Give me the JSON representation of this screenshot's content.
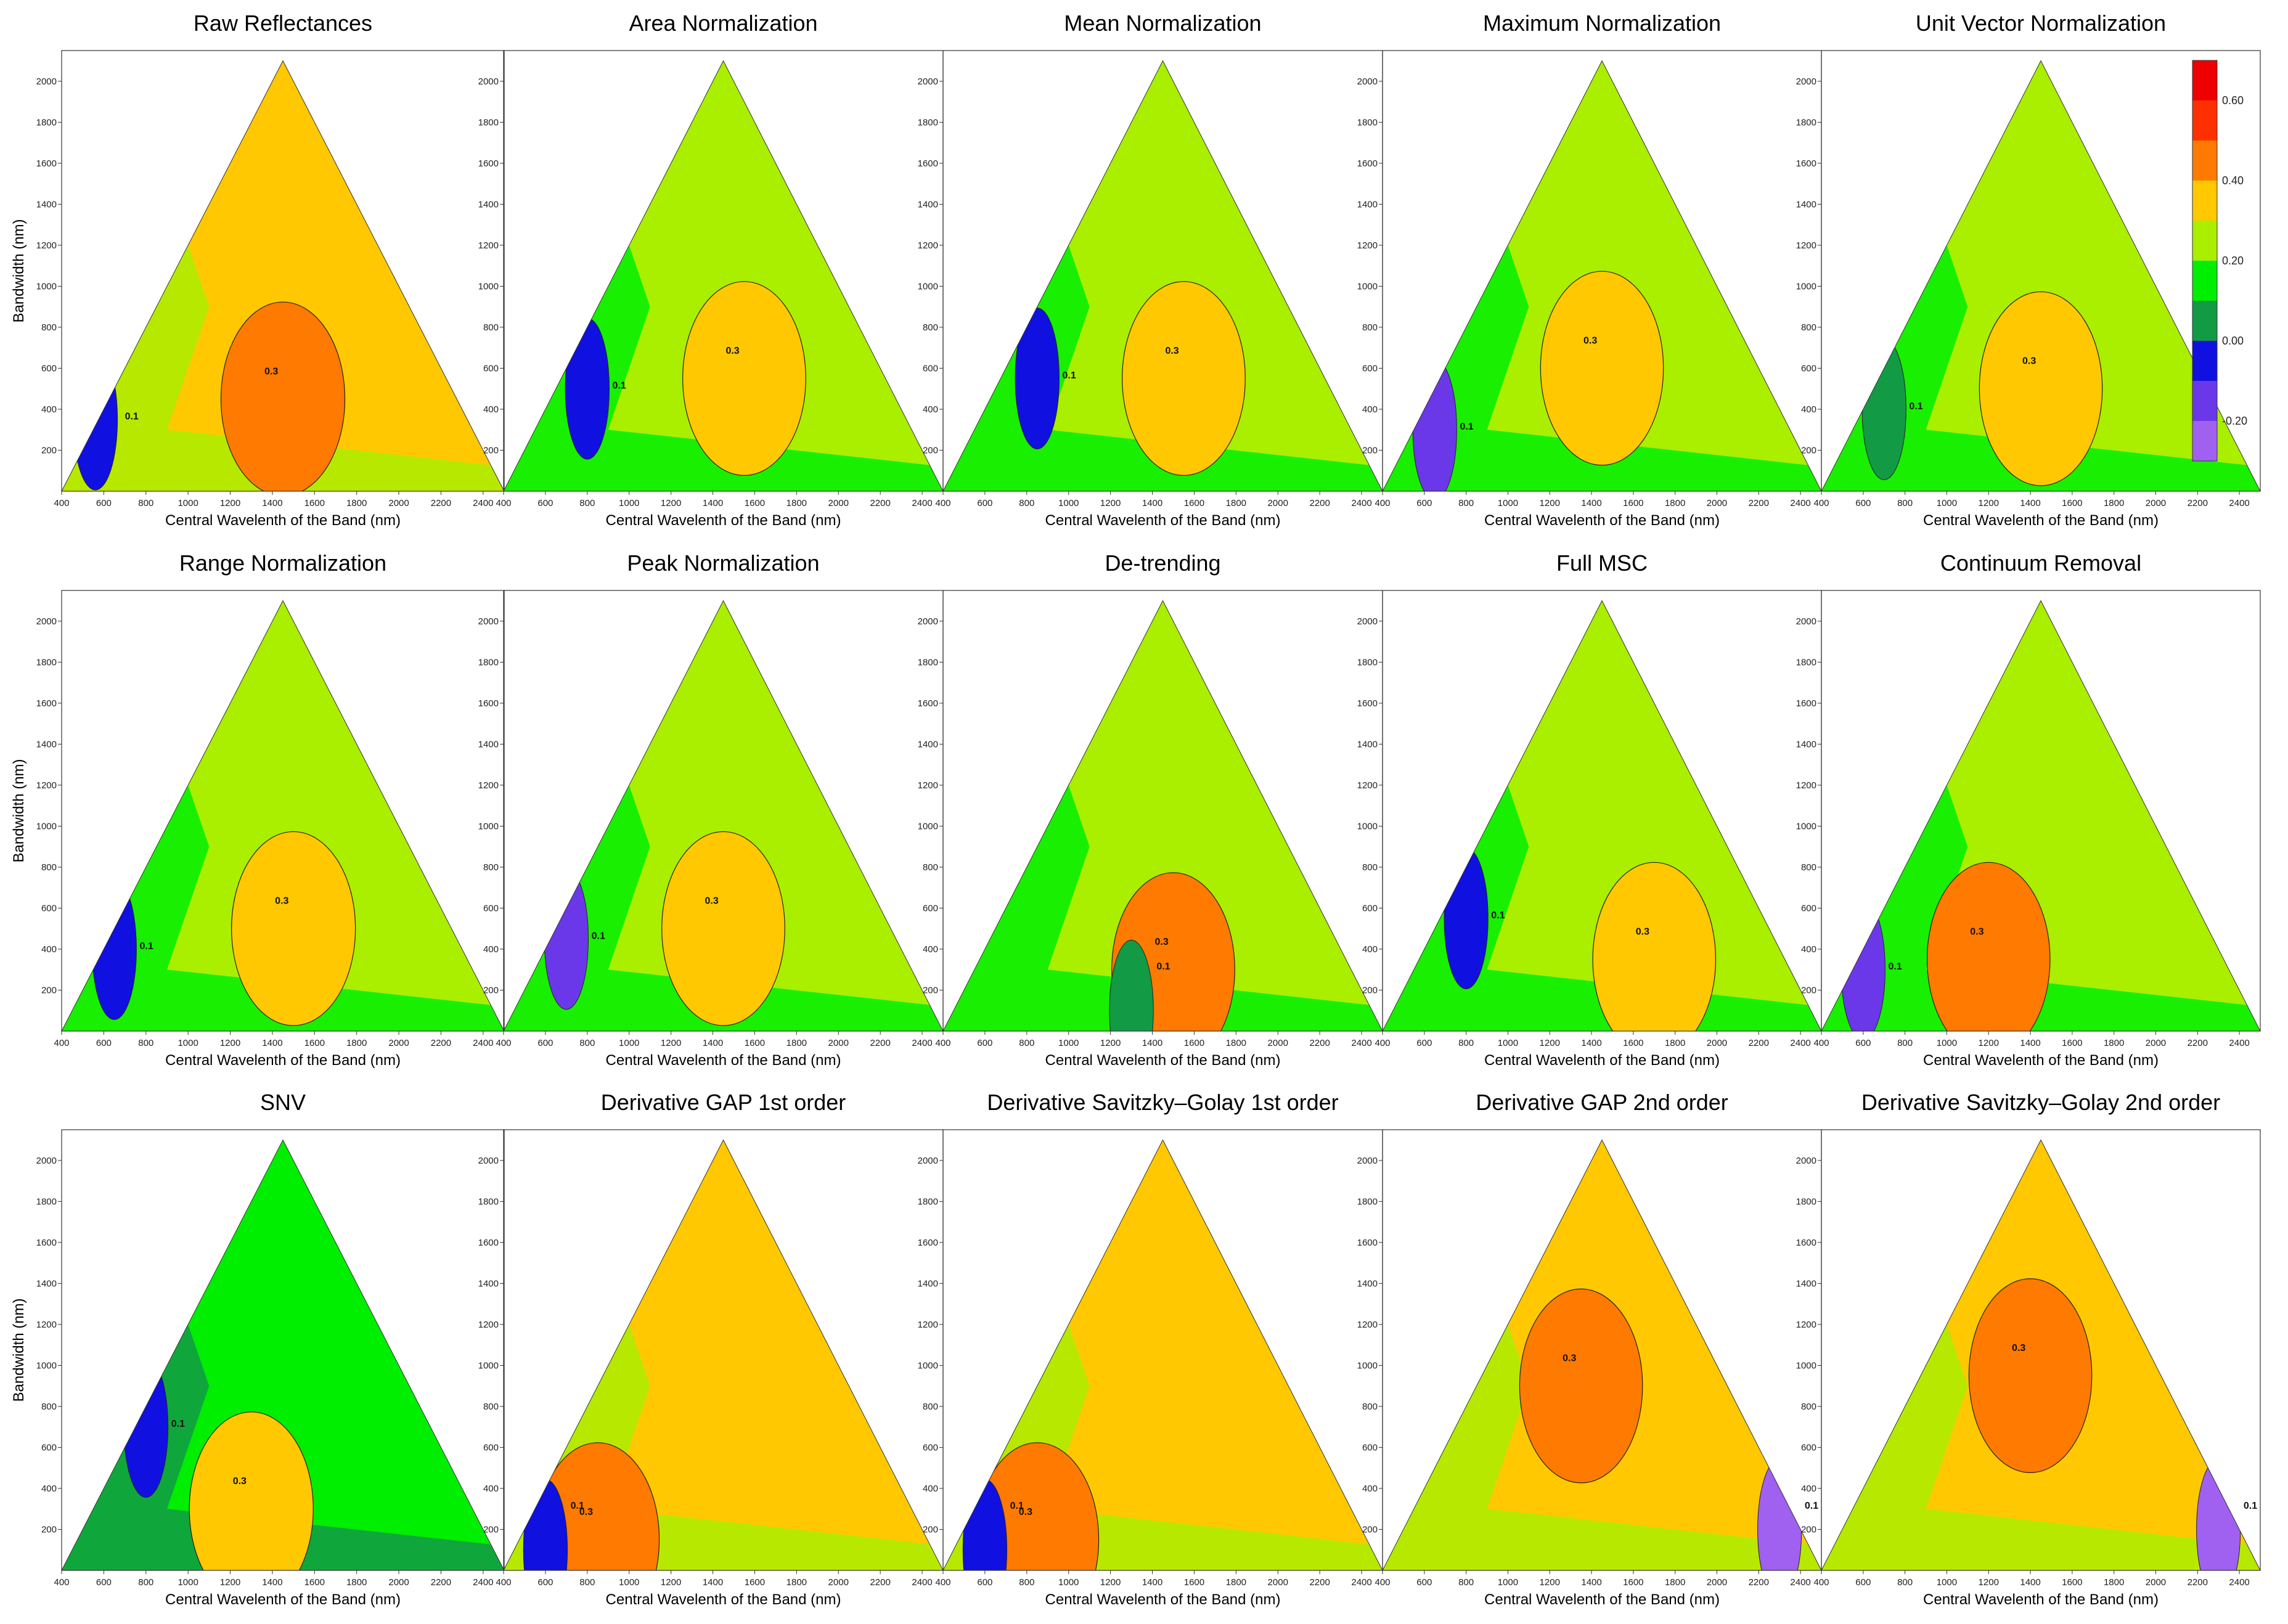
{
  "chart_data": {
    "type": "heatmap",
    "description_axes": {
      "xlabel": "Central Wavelenth of the Band (nm)",
      "ylabel": "Bandwidth (nm)",
      "xlim": [
        400,
        2500
      ],
      "ylim": [
        0,
        2150
      ],
      "xticks": [
        400,
        600,
        800,
        1000,
        1200,
        1400,
        1600,
        1800,
        2000,
        2200,
        2400
      ],
      "yticks": [
        200,
        400,
        600,
        800,
        1000,
        1200,
        1400,
        1600,
        1800,
        2000
      ]
    },
    "colorbar": {
      "tick_labels": [
        "0.60",
        "0.40",
        "0.20",
        "0.00",
        "-0.20"
      ],
      "levels": [
        -0.3,
        -0.2,
        -0.1,
        0.0,
        0.1,
        0.2,
        0.3,
        0.4,
        0.5,
        0.6,
        0.7
      ],
      "colors": [
        "#a060f0",
        "#6a38e8",
        "#1010e0",
        "#129a45",
        "#00ee00",
        "#aaee00",
        "#ffc800",
        "#ff7a00",
        "#ff3000",
        "#ee0000"
      ]
    },
    "contour_label_values": [
      "0.1",
      "0.3"
    ],
    "panels": [
      {
        "title": "Raw Reflectances",
        "base_level": 6,
        "hot_level": 7,
        "hot_center": [
          1450,
          450
        ],
        "cold_center": [
          560,
          350
        ],
        "cold_level": 2
      },
      {
        "title": "Area Normalization",
        "base_level": 5,
        "hot_level": 6,
        "hot_center": [
          1550,
          550
        ],
        "cold_center": [
          800,
          500
        ],
        "cold_level": 2
      },
      {
        "title": "Mean Normalization",
        "base_level": 5,
        "hot_level": 6,
        "hot_center": [
          1550,
          550
        ],
        "cold_center": [
          850,
          550
        ],
        "cold_level": 2
      },
      {
        "title": "Maximum Normalization",
        "base_level": 5,
        "hot_level": 6,
        "hot_center": [
          1450,
          600
        ],
        "cold_center": [
          650,
          300
        ],
        "cold_level": 1
      },
      {
        "title": "Unit Vector Normalization",
        "base_level": 5,
        "hot_level": 6,
        "hot_center": [
          1450,
          500
        ],
        "cold_center": [
          700,
          400
        ],
        "cold_level": 3
      },
      {
        "title": "Range Normalization",
        "base_level": 5,
        "hot_level": 6,
        "hot_center": [
          1500,
          500
        ],
        "cold_center": [
          650,
          400
        ],
        "cold_level": 2
      },
      {
        "title": "Peak Normalization",
        "base_level": 5,
        "hot_level": 6,
        "hot_center": [
          1450,
          500
        ],
        "cold_center": [
          700,
          450
        ],
        "cold_level": 1
      },
      {
        "title": "De-trending",
        "base_level": 5,
        "hot_level": 7,
        "hot_center": [
          1500,
          300
        ],
        "cold_center": [
          1300,
          100
        ],
        "cold_level": 3
      },
      {
        "title": "Full MSC",
        "base_level": 5,
        "hot_level": 6,
        "hot_center": [
          1700,
          350
        ],
        "cold_center": [
          800,
          550
        ],
        "cold_level": 2
      },
      {
        "title": "Continuum Removal",
        "base_level": 5,
        "hot_level": 7,
        "hot_center": [
          1200,
          350
        ],
        "cold_center": [
          600,
          300
        ],
        "cold_level": 1
      },
      {
        "title": "SNV",
        "base_level": 4,
        "hot_level": 6,
        "hot_center": [
          1300,
          300
        ],
        "cold_center": [
          800,
          700
        ],
        "cold_level": 2
      },
      {
        "title": "Derivative GAP 1st order",
        "base_level": 6,
        "hot_level": 7,
        "hot_center": [
          850,
          150
        ],
        "cold_center": [
          600,
          100
        ],
        "cold_level": 2
      },
      {
        "title": "Derivative Savitzky–Golay 1st order",
        "base_level": 6,
        "hot_level": 7,
        "hot_center": [
          850,
          150
        ],
        "cold_center": [
          600,
          100
        ],
        "cold_level": 2
      },
      {
        "title": "Derivative GAP 2nd order",
        "base_level": 6,
        "hot_level": 7,
        "hot_center": [
          1350,
          900
        ],
        "cold_center": [
          2300,
          200
        ],
        "cold_level": 0
      },
      {
        "title": "Derivative Savitzky–Golay 2nd order",
        "base_level": 6,
        "hot_level": 7,
        "hot_center": [
          1400,
          950
        ],
        "cold_center": [
          2300,
          200
        ],
        "cold_level": 0
      }
    ]
  }
}
